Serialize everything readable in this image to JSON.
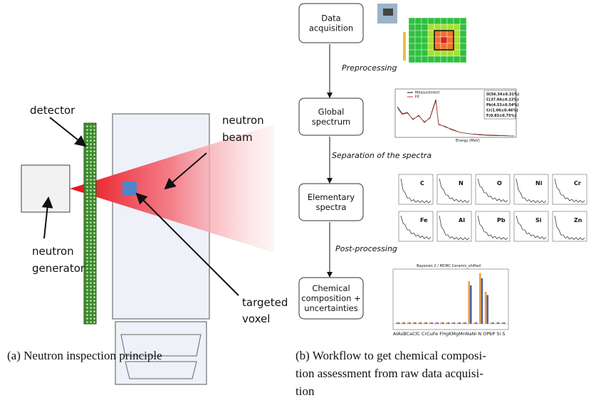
{
  "left": {
    "labels": [
      "detector",
      "neutron",
      "beam",
      "targeted",
      "voxel",
      "neutron",
      "generator"
    ],
    "caption": "(a) Neutron inspection principle"
  },
  "right": {
    "boxes": [
      [
        "Data",
        "acquisition"
      ],
      [
        "Global",
        "spectrum"
      ],
      [
        "Elementary",
        "spectra"
      ],
      [
        "Chemical",
        "composition +",
        "uncertainties"
      ]
    ],
    "steps": [
      "Preprocessing",
      "Separation of the spectra",
      "Post-processing"
    ],
    "spectrum": {
      "legend": [
        "Measurement",
        "Fit"
      ],
      "composition": [
        "O(56.34±0.31%)",
        "C(37.04±0.22%)",
        "Pb(4.53±0.54%)",
        "Cr(1.06±0.46%)",
        "F(0.83±0.75%)"
      ],
      "xlabel": "Energy (MeV)"
    },
    "elements": [
      "C",
      "N",
      "O",
      "Ni",
      "Cr",
      "Fe",
      "Al",
      "Pb",
      "Si",
      "Zn"
    ],
    "barchart": {
      "title": "Bayesian 2 / MCMC Ceramic_shifted",
      "xlabels": "AlAsBCaClC CrCuFe FHgKMgMnNaNi N OPbP Si S"
    },
    "caption": [
      "(b) Workflow to get chemical composi-",
      "tion assessment from raw data acquisi-",
      "tion"
    ]
  }
}
